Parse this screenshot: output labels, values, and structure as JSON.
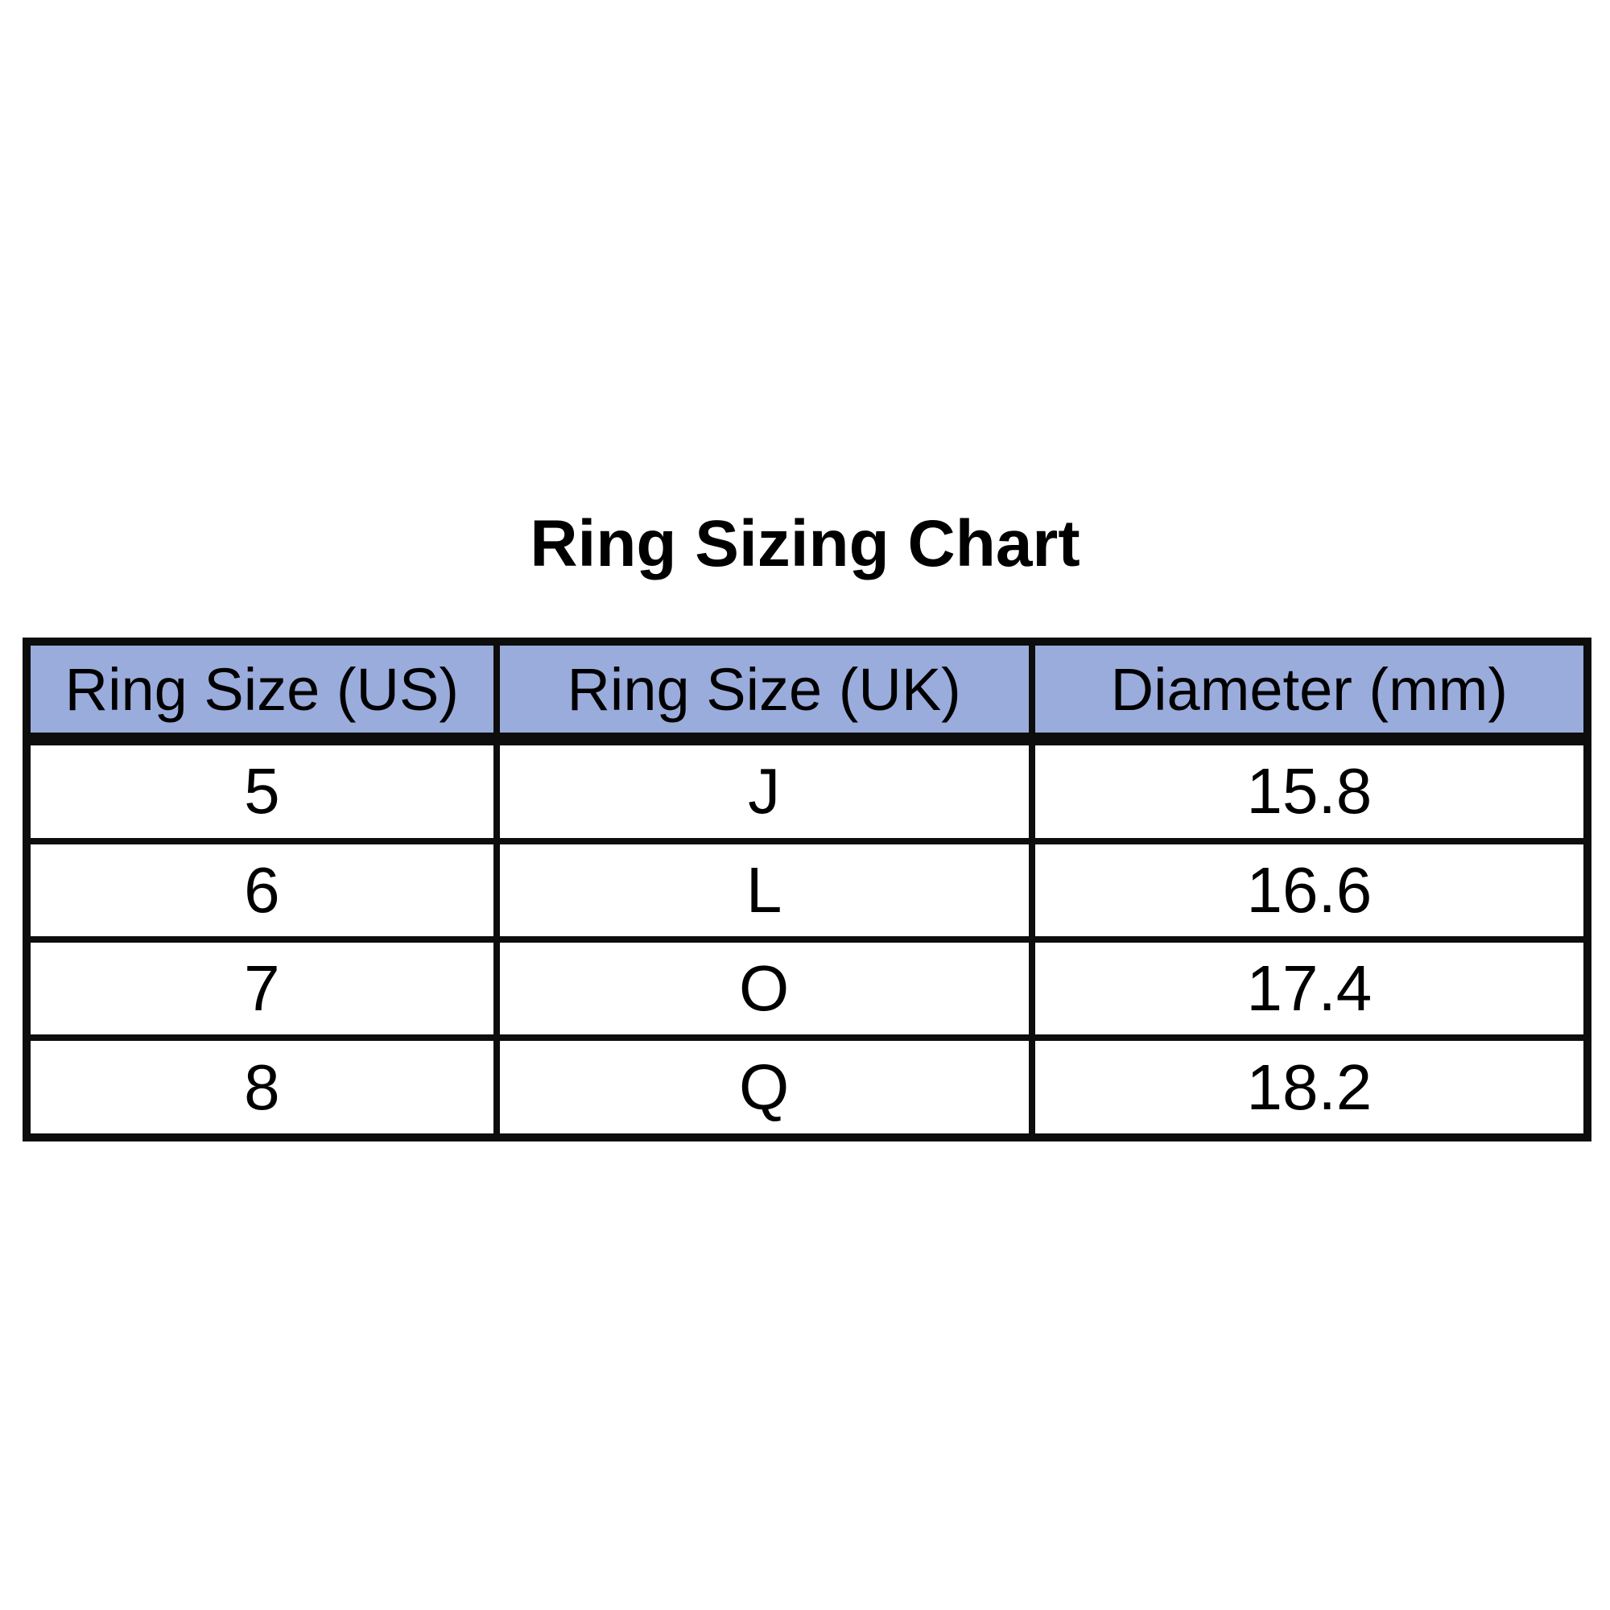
{
  "page": {
    "title": "Ring Sizing Chart"
  },
  "colors": {
    "background": "#ffffff",
    "header_bg": "#9aacdb",
    "border": "#0d0d0d",
    "text": "#000000"
  },
  "chart_data": {
    "type": "table",
    "title": "Ring Sizing Chart",
    "columns": [
      "Ring Size (US)",
      "Ring Size (UK)",
      "Diameter (mm)"
    ],
    "rows": [
      [
        "5",
        "J",
        "15.8"
      ],
      [
        "6",
        "L",
        "16.6"
      ],
      [
        "7",
        "O",
        "17.4"
      ],
      [
        "8",
        "Q",
        "18.2"
      ]
    ]
  }
}
